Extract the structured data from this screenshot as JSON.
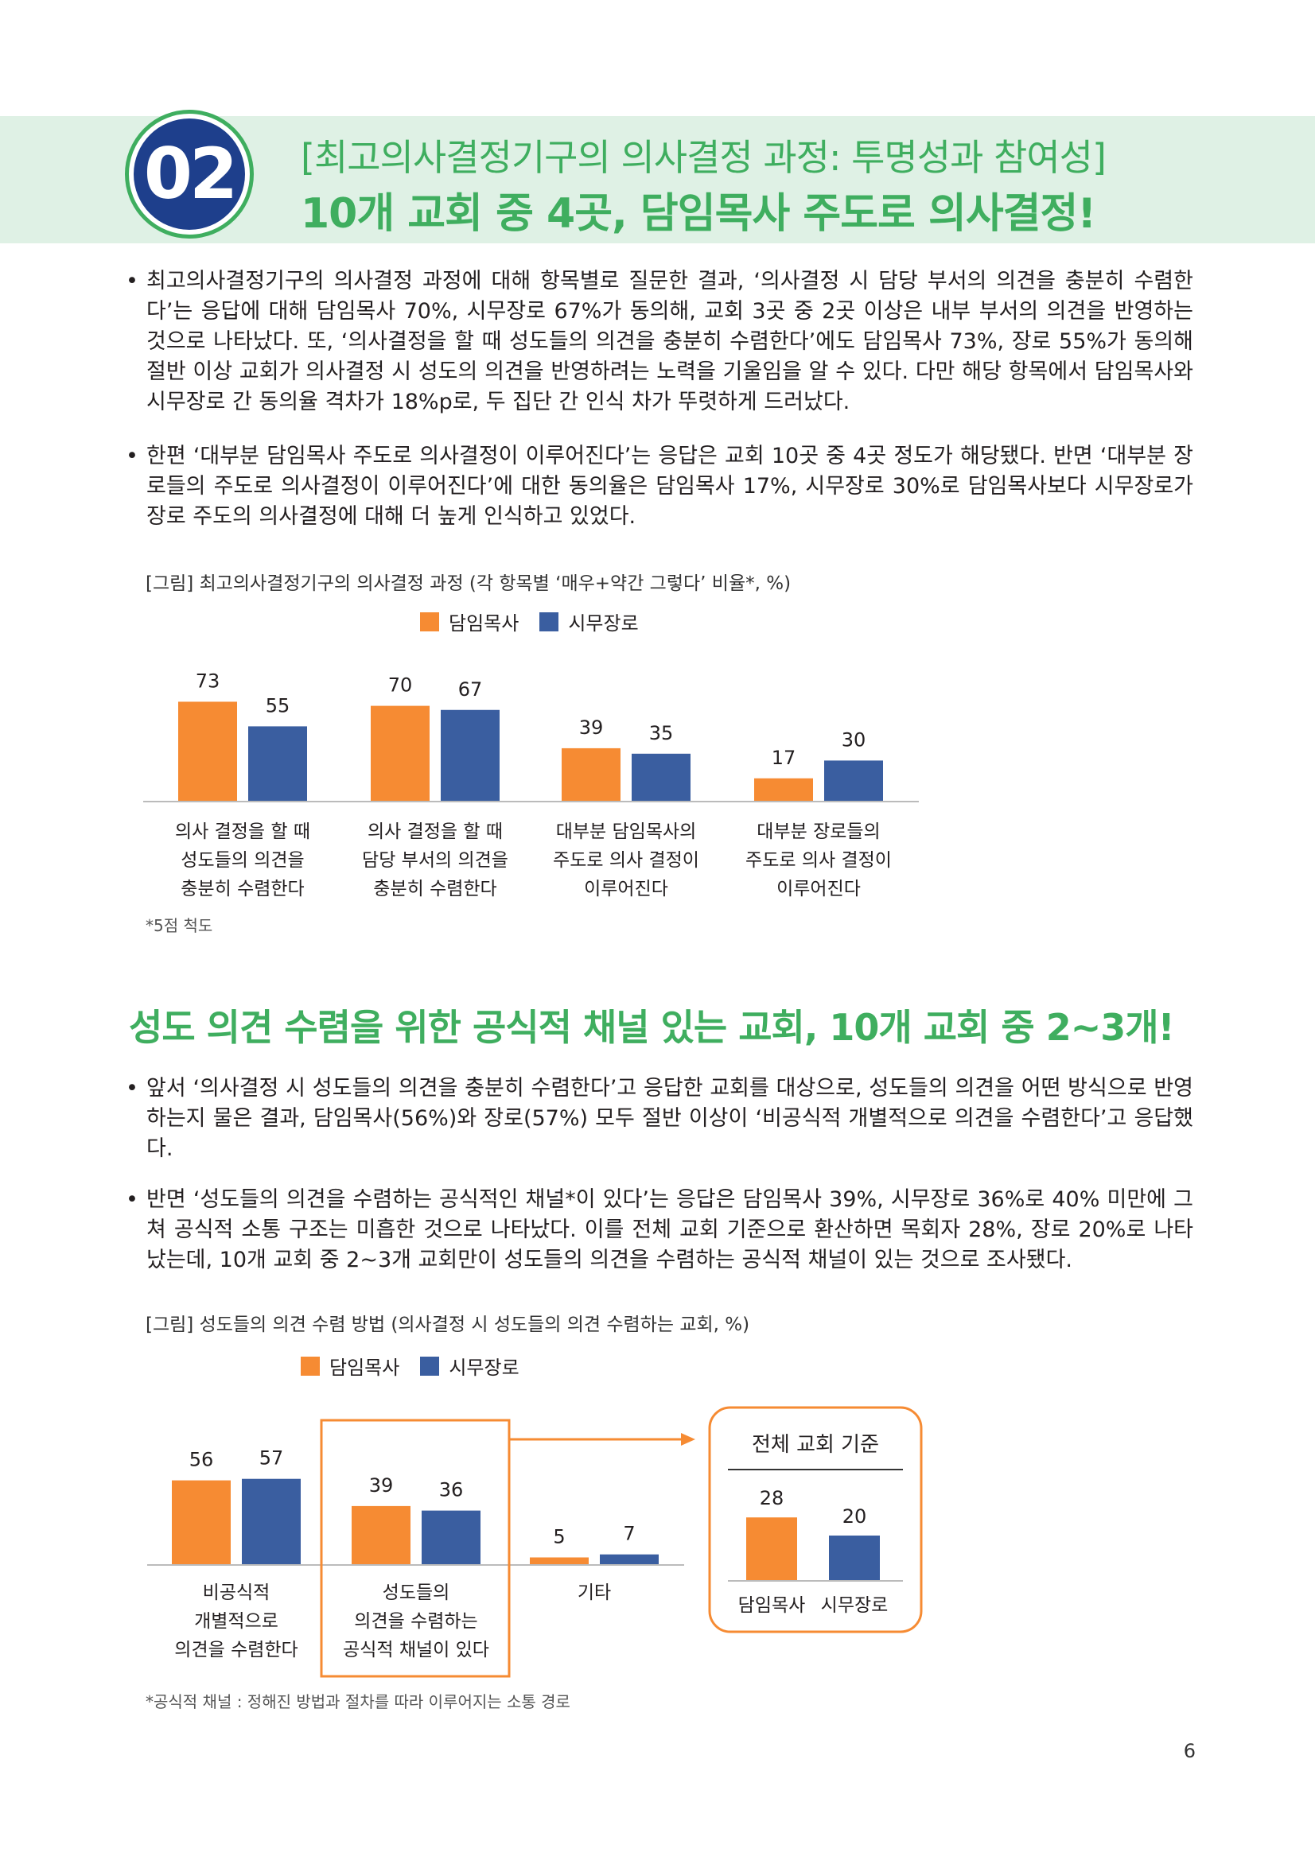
{
  "header": {
    "badge_number": "02",
    "subtitle": "[최고의사결정기구의 의사결정 과정: 투명성과 참여성]",
    "title": "10개 교회 중 4곳, 담임목사 주도로 의사결정!"
  },
  "section1": {
    "paragraphs": [
      "최고의사결정기구의 의사결정 과정에 대해 항목별로 질문한 결과, ‘의사결정 시 담당 부서의 의견을 충분히 수렴한다’는 응답에 대해 담임목사 70%, 시무장로 67%가 동의해, 교회 3곳 중 2곳 이상은 내부 부서의 의견을 반영하는 것으로 나타났다. 또, ‘의사결정을 할 때 성도들의 의견을 충분히 수렴한다’에도 담임목사 73%, 장로 55%가 동의해 절반 이상 교회가 의사결정 시 성도의 의견을 반영하려는 노력을 기울임을 알 수 있다. 다만 해당 항목에서 담임목사와 시무장로 간 동의율 격차가 18%p로, 두 집단 간 인식 차가 뚜렷하게 드러났다.",
      "한편 ‘대부분 담임목사 주도로 의사결정이 이루어진다’는 응답은 교회 10곳 중 4곳 정도가 해당됐다. 반면 ‘대부분 장로들의 주도로 의사결정이 이루어진다’에 대한 동의율은 담임목사 17%, 시무장로 30%로 담임목사보다 시무장로가 장로 주도의 의사결정에 대해 더 높게 인식하고 있었다."
    ],
    "bullet": "•"
  },
  "chart_data": [
    {
      "type": "bar",
      "title": "[그림] 최고의사결정기구의 의사결정 과정 (각 항목별 ‘매우+약간 그렇다’ 비율*, %)",
      "categories": [
        [
          "의사 결정을 할 때",
          "성도들의 의견을",
          "충분히 수렴한다"
        ],
        [
          "의사 결정을 할 때",
          "담당 부서의 의견을",
          "충분히 수렴한다"
        ],
        [
          "대부분 담임목사의",
          "주도로 의사 결정이",
          "이루어진다"
        ],
        [
          "대부분 장로들의",
          "주도로 의사 결정이",
          "이루어진다"
        ]
      ],
      "series": [
        {
          "name": "담임목사",
          "color": "#f68b33",
          "values": [
            73,
            70,
            39,
            17
          ]
        },
        {
          "name": "시무장로",
          "color": "#3a5ea0",
          "values": [
            55,
            67,
            35,
            30
          ]
        }
      ],
      "ylim": [
        0,
        100
      ],
      "xlabel": "",
      "ylabel": "",
      "legend": "top-center",
      "note": "*5점 척도"
    },
    {
      "type": "bar",
      "title": "[그림] 성도들의 의견 수렴 방법 (의사결정 시 성도들의 의견 수렴하는 교회, %)",
      "categories": [
        [
          "비공식적",
          "개별적으로",
          "의견을 수렴한다"
        ],
        [
          "성도들의",
          "의견을 수렴하는",
          "공식적 채널이 있다"
        ],
        [
          "기타"
        ]
      ],
      "series": [
        {
          "name": "담임목사",
          "color": "#f68b33",
          "values": [
            56,
            39,
            5
          ]
        },
        {
          "name": "시무장로",
          "color": "#3a5ea0",
          "values": [
            57,
            36,
            7
          ]
        }
      ],
      "ylim": [
        0,
        100
      ],
      "xlabel": "",
      "ylabel": "",
      "legend": "top-left",
      "highlight_category": 1,
      "note": "*공식적 채널 : 정해진 방법과 절차를 따라 이루어지는 소통 경로"
    },
    {
      "type": "bar",
      "title": "전체 교회 기준",
      "categories": [
        "담임목사",
        "시무장로"
      ],
      "values": [
        28,
        20
      ],
      "colors": [
        "#f68b33",
        "#3a5ea0"
      ],
      "ylim": [
        0,
        100
      ]
    }
  ],
  "section2": {
    "title": "성도 의견 수렴을 위한 공식적 채널 있는 교회, 10개 교회 중 2~3개!",
    "paragraphs": [
      "앞서 ‘의사결정 시 성도들의 의견을 충분히 수렴한다’고 응답한 교회를 대상으로, 성도들의 의견을 어떤 방식으로 반영하는지 물은 결과, 담임목사(56%)와 장로(57%) 모두 절반 이상이 ‘비공식적 개별적으로 의견을 수렴한다’고 응답했다.",
      "반면 ‘성도들의 의견을 수렴하는 공식적인 채널*이 있다’는 응답은 담임목사 39%, 시무장로 36%로 40% 미만에 그쳐 공식적 소통 구조는 미흡한 것으로 나타났다. 이를 전체 교회 기준으로 환산하면 목회자 28%, 장로 20%로 나타났는데, 10개 교회 중 2~3개 교회만이 성도들의 의견을 수렴하는 공식적 채널이 있는 것으로 조사됐다."
    ]
  },
  "page_number": "6",
  "colors": {
    "accent_green": "#3fae5f",
    "navy": "#1e3f8c",
    "orange": "#f68b33",
    "blue": "#3a5ea0",
    "band": "#dff1e5"
  }
}
